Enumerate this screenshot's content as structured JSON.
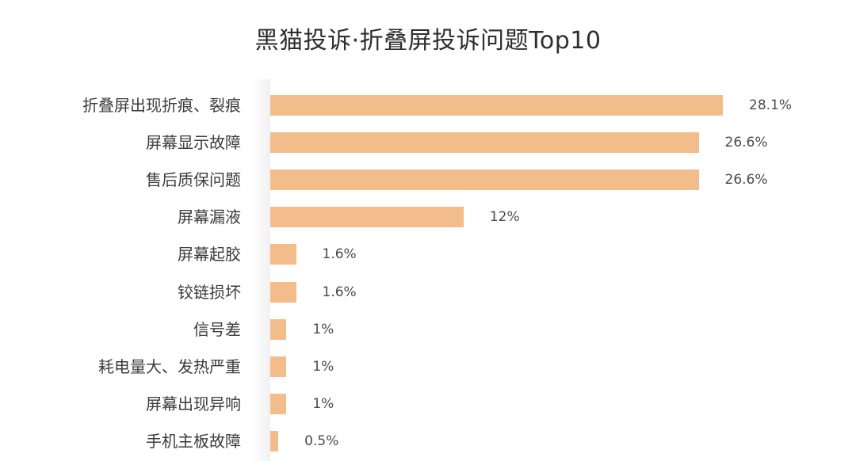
{
  "chart_data": {
    "type": "bar",
    "orientation": "horizontal",
    "title": "黑猫投诉·折叠屏投诉问题Top10",
    "xlabel": "",
    "ylabel": "",
    "categories": [
      "折叠屏出现折痕、裂痕",
      "屏幕显示故障",
      "售后质保问题",
      "屏幕漏液",
      "屏幕起胶",
      "铰链损坏",
      "信号差",
      "耗电量大、发热严重",
      "屏幕出现异响",
      "手机主板故障"
    ],
    "values": [
      28.1,
      26.6,
      26.6,
      12,
      1.6,
      1.6,
      1,
      1,
      1,
      0.5
    ],
    "labels": [
      "28.1%",
      "26.6%",
      "26.6%",
      "12%",
      "1.6%",
      "1.6%",
      "1%",
      "1%",
      "1%",
      "0.5%"
    ],
    "unit": "%",
    "grid": false,
    "legend": null,
    "bar_color": "#F2BD8A"
  }
}
